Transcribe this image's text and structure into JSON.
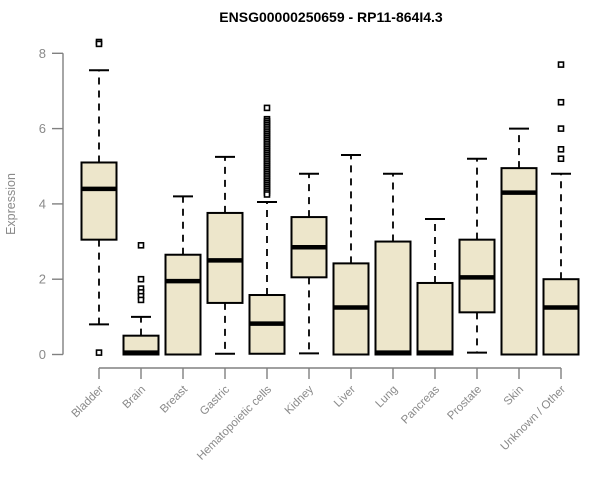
{
  "colors": {
    "background": "#FFFFFF",
    "box_fill": "#EDE6CB",
    "box_stroke": "#000000",
    "median": "#000000",
    "whisker": "#000000",
    "outlier_stroke": "#000000",
    "outlier_fill": "#FFFFFF",
    "axis": "#808080",
    "tick_label": "#8A8A8A",
    "title": "#000000"
  },
  "chart_data": {
    "type": "boxplot",
    "title": "ENSG00000250659 - RP11-864I4.3",
    "xlabel": "",
    "ylabel": "Expression",
    "ylim": [
      0,
      8
    ],
    "yticks": [
      0,
      2,
      4,
      6,
      8
    ],
    "grid": false,
    "legend": false,
    "categories": [
      "Bladder",
      "Brain",
      "Breast",
      "Gastric",
      "Hematopoietic cells",
      "Kidney",
      "Liver",
      "Lung",
      "Pancreas",
      "Prostate",
      "Skin",
      "Unknown / Other"
    ],
    "series": [
      {
        "name": "Bladder",
        "whisker_low": 0.8,
        "q1": 3.05,
        "median": 4.4,
        "q3": 5.1,
        "whisker_high": 7.55,
        "outliers": [
          8.3,
          8.25,
          0.05
        ]
      },
      {
        "name": "Brain",
        "whisker_low": null,
        "q1": 0,
        "median": 0.05,
        "q3": 0.5,
        "whisker_high": 1.0,
        "outliers": [
          2.9,
          2.0,
          1.75,
          1.65,
          1.55,
          1.45
        ]
      },
      {
        "name": "Breast",
        "whisker_low": null,
        "q1": 0,
        "median": 1.95,
        "q3": 2.65,
        "whisker_high": 4.2,
        "outliers": []
      },
      {
        "name": "Gastric",
        "whisker_low": 0.02,
        "q1": 1.37,
        "median": 2.5,
        "q3": 3.76,
        "whisker_high": 5.25,
        "outliers": []
      },
      {
        "name": "Hematopoietic cells",
        "whisker_low": null,
        "q1": 0.02,
        "median": 0.82,
        "q3": 1.58,
        "whisker_high": 4.05,
        "outliers": [
          6.55,
          6.25,
          6.2,
          6.15,
          6.1,
          6.05,
          6.0,
          5.95,
          5.9,
          5.85,
          5.8,
          5.75,
          5.7,
          5.65,
          5.6,
          5.55,
          5.5,
          5.45,
          5.4,
          5.35,
          5.3,
          5.25,
          5.2,
          5.15,
          5.1,
          5.05,
          5.0,
          4.95,
          4.9,
          4.85,
          4.8,
          4.75,
          4.7,
          4.65,
          4.6,
          4.55,
          4.5,
          4.45,
          4.4,
          4.35,
          4.3,
          4.25
        ]
      },
      {
        "name": "Kidney",
        "whisker_low": 0.03,
        "q1": 2.05,
        "median": 2.85,
        "q3": 3.65,
        "whisker_high": 4.8,
        "outliers": []
      },
      {
        "name": "Liver",
        "whisker_low": null,
        "q1": 0,
        "median": 1.25,
        "q3": 2.42,
        "whisker_high": 5.3,
        "outliers": []
      },
      {
        "name": "Lung",
        "whisker_low": null,
        "q1": 0,
        "median": 0.05,
        "q3": 3.0,
        "whisker_high": 4.8,
        "outliers": []
      },
      {
        "name": "Pancreas",
        "whisker_low": null,
        "q1": 0,
        "median": 0.05,
        "q3": 1.9,
        "whisker_high": 3.6,
        "outliers": []
      },
      {
        "name": "Prostate",
        "whisker_low": 0.05,
        "q1": 1.12,
        "median": 2.05,
        "q3": 3.05,
        "whisker_high": 5.2,
        "outliers": []
      },
      {
        "name": "Skin",
        "whisker_low": null,
        "q1": 0,
        "median": 4.3,
        "q3": 4.95,
        "whisker_high": 6.0,
        "outliers": []
      },
      {
        "name": "Unknown / Other",
        "whisker_low": null,
        "q1": 0,
        "median": 1.25,
        "q3": 2.0,
        "whisker_high": 4.8,
        "outliers": [
          7.7,
          6.7,
          6.0,
          5.45,
          5.2
        ]
      }
    ]
  }
}
